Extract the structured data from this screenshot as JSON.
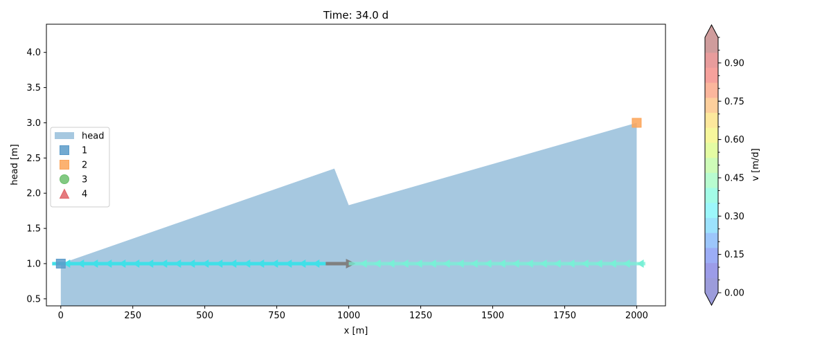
{
  "chart_data": {
    "type": "area",
    "title": "Time: 34.0 d",
    "xlabel": "x [m]",
    "ylabel": "head [m]",
    "xlim": [
      -50,
      2100
    ],
    "ylim": [
      0.4,
      4.4
    ],
    "x_ticks": [
      0,
      250,
      500,
      750,
      1000,
      1250,
      1500,
      1750,
      2000
    ],
    "x_tick_labels": [
      "0",
      "250",
      "500",
      "750",
      "1000",
      "1250",
      "1500",
      "1750",
      "2000"
    ],
    "y_ticks": [
      0.5,
      1.0,
      1.5,
      2.0,
      2.5,
      3.0,
      3.5,
      4.0
    ],
    "y_tick_labels": [
      "0.5",
      "1.0",
      "1.5",
      "2.0",
      "2.5",
      "3.0",
      "3.5",
      "4.0"
    ],
    "grid": false,
    "head_profile": {
      "name": "head",
      "color": "#a6c8e0",
      "baseline": 0.4,
      "x": [
        0,
        950,
        1000,
        2000
      ],
      "y": [
        1.0,
        2.35,
        1.83,
        3.0
      ]
    },
    "markers": [
      {
        "name": "1",
        "shape": "square",
        "color": "#5b9bc9",
        "x": 0,
        "y": 1.0
      },
      {
        "name": "2",
        "shape": "square",
        "color": "#fca458",
        "x": 2000,
        "y": 3.0
      },
      {
        "name": "3",
        "shape": "circle",
        "color": "#6cbf6c",
        "x": null,
        "y": null
      },
      {
        "name": "4",
        "shape": "triangle",
        "color": "#e06468",
        "x": null,
        "y": null
      }
    ],
    "flow_line": {
      "y": 1.0,
      "x_start": -30,
      "x_end": 2030,
      "segments": [
        {
          "x_start": -30,
          "x_end": 920,
          "direction": "left",
          "velocity": 0.38,
          "color": "#40e0e8"
        },
        {
          "x_start": 920,
          "x_end": 1000,
          "direction": "right",
          "velocity": null,
          "color": "#808080"
        },
        {
          "x_start": 1000,
          "x_end": 2030,
          "direction": "left",
          "velocity": 0.42,
          "color": "#78f0d6"
        }
      ]
    },
    "legend": {
      "placement": "center-left",
      "entries": [
        {
          "label": "head",
          "shape": "patch",
          "color": "#a6c8e0"
        },
        {
          "label": "1",
          "shape": "square",
          "color": "#5b9bc9"
        },
        {
          "label": "2",
          "shape": "square",
          "color": "#fca458"
        },
        {
          "label": "3",
          "shape": "circle",
          "color": "#6cbf6c"
        },
        {
          "label": "4",
          "shape": "triangle",
          "color": "#e06468"
        }
      ]
    },
    "colorbar": {
      "label": "v [m/d]",
      "range": [
        0.0,
        1.0
      ],
      "ticks": [
        0.0,
        0.15,
        0.3,
        0.45,
        0.6,
        0.75,
        0.9
      ],
      "tick_labels": [
        "0.00",
        "0.15",
        "0.30",
        "0.45",
        "0.60",
        "0.75",
        "0.90"
      ],
      "minor_step": 0.05,
      "extend": "both",
      "colors": [
        "#9c9cdb",
        "#9c9ce8",
        "#9cadf6",
        "#9cc6fb",
        "#9ce2fd",
        "#9cf7fb",
        "#a3fce7",
        "#b8fcd0",
        "#cefcb8",
        "#e4fca3",
        "#f7f79c",
        "#fde89c",
        "#fdcf9c",
        "#fbb69c",
        "#f6a19c",
        "#e89c9c",
        "#cf9c9c"
      ]
    }
  }
}
